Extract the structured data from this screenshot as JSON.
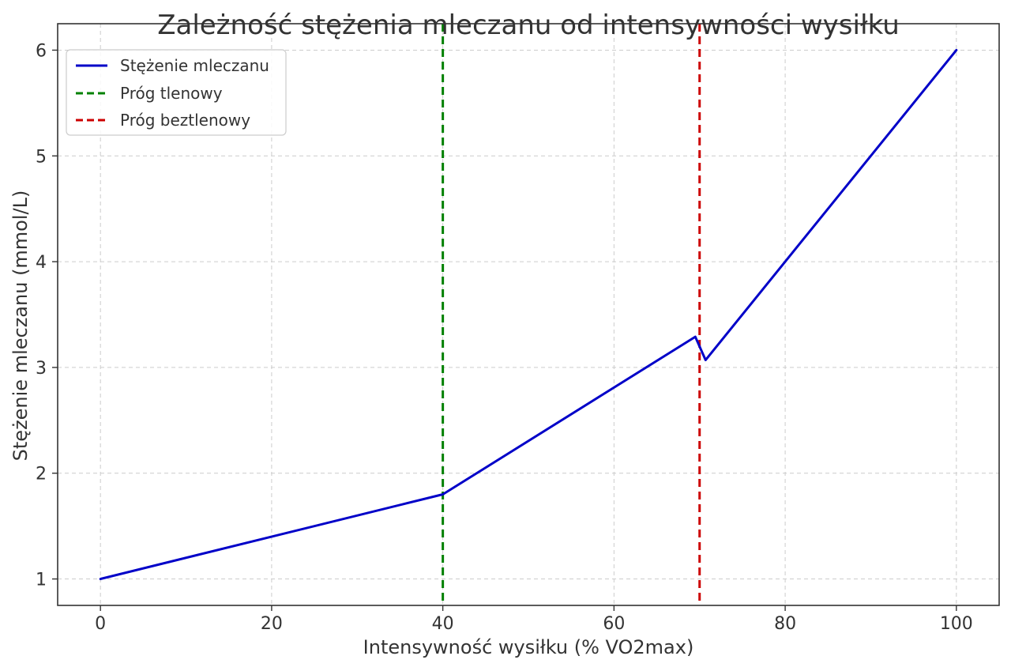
{
  "chart_data": {
    "type": "line",
    "title": "Zależność stężenia mleczanu od intensywności wysiłku",
    "xlabel": "Intensywność wysiłku (% VO2max)",
    "ylabel": "Stężenie mleczanu (mmol/L)",
    "xlim": [
      -5,
      105
    ],
    "ylim": [
      0.75,
      6.25
    ],
    "xticks": [
      0,
      20,
      40,
      60,
      80,
      100
    ],
    "yticks": [
      1,
      2,
      3,
      4,
      5,
      6
    ],
    "grid": true,
    "legend_position": "top-left",
    "series": [
      {
        "name": "Stężenie mleczanu",
        "color": "#0000c8",
        "style": "solid",
        "x": [
          0,
          40,
          69.5,
          70.7,
          100
        ],
        "y": [
          1.0,
          1.8,
          3.29,
          3.07,
          6.0
        ]
      }
    ],
    "vlines": [
      {
        "name": "Próg tlenowy",
        "x": 40,
        "color": "#008000",
        "style": "dashed"
      },
      {
        "name": "Próg beztlenowy",
        "x": 70,
        "color": "#cc0000",
        "style": "dashed"
      }
    ]
  }
}
